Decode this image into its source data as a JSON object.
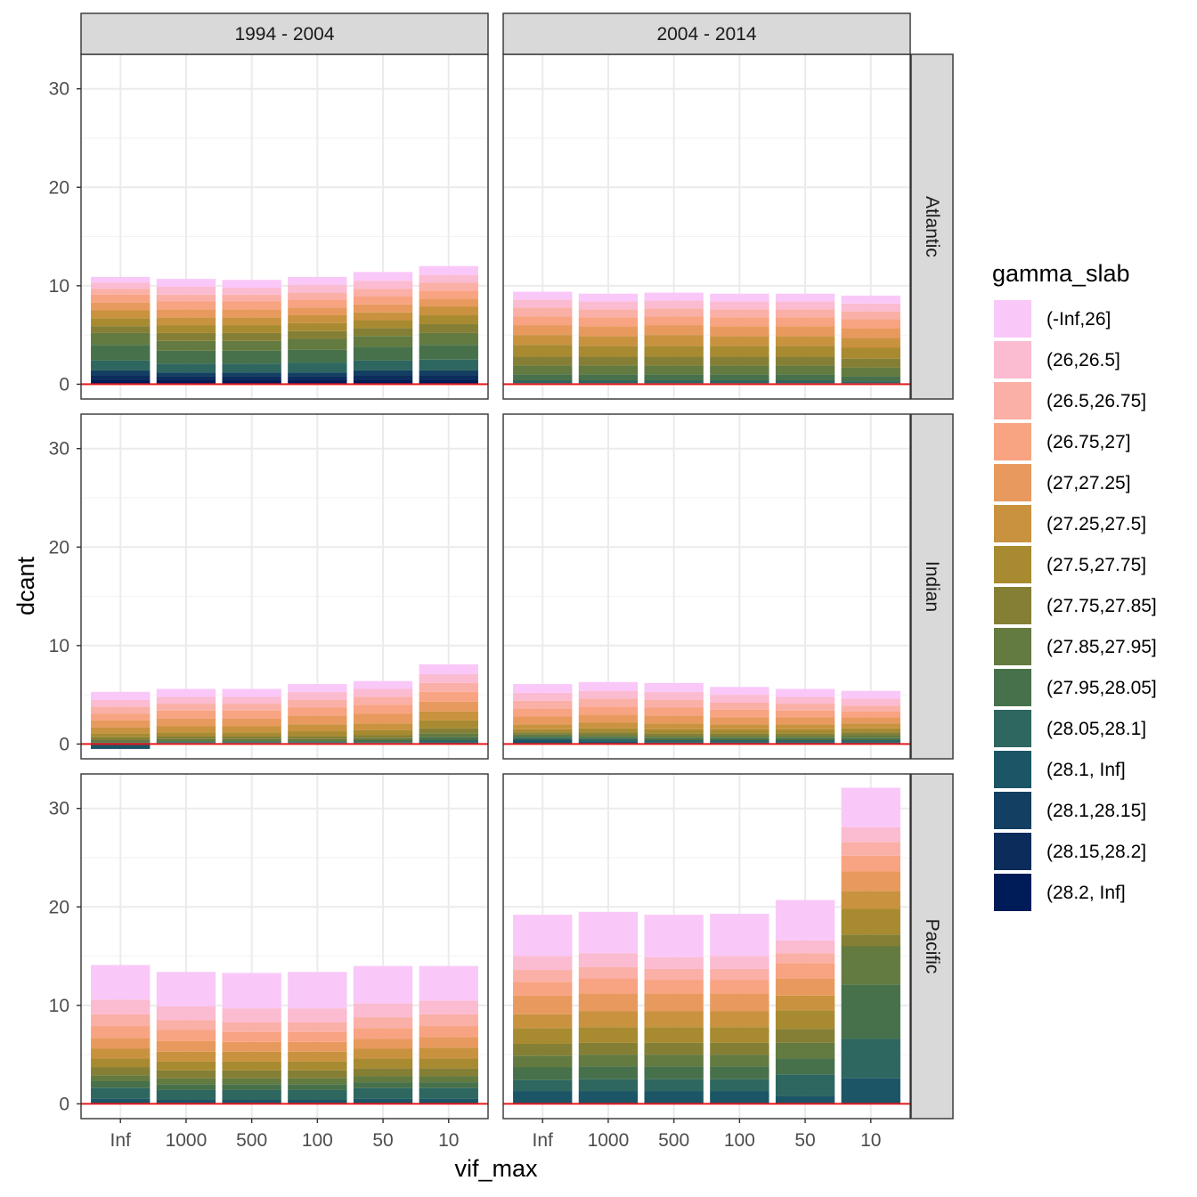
{
  "chart_data": {
    "type": "bar",
    "stacked": true,
    "xlabel": "vif_max",
    "ylabel": "dcant",
    "ylim": [
      -1.5,
      33.5
    ],
    "yticks": [
      0,
      10,
      20,
      30
    ],
    "grid": true,
    "legend_position": "right",
    "legend_title": "gamma_slab",
    "zero_line_color": "#e41a1c",
    "categories": [
      "Inf",
      "1000",
      "500",
      "100",
      "50",
      "10"
    ],
    "facet_cols": [
      "1994 - 2004",
      "2004 - 2014"
    ],
    "facet_rows": [
      "Atlantic",
      "Indian",
      "Pacific"
    ],
    "slabs": [
      "(-Inf,26]",
      "(26,26.5]",
      "(26.5,26.75]",
      "(26.75,27]",
      "(27,27.25]",
      "(27.25,27.5]",
      "(27.5,27.75]",
      "(27.75,27.85]",
      "(27.85,27.95]",
      "(27.95,28.05]",
      "(28.05,28.1]",
      "(28.1, Inf]",
      "(28.1,28.15]",
      "(28.15,28.2]",
      "(28.2, Inf]"
    ],
    "colors": [
      "#f9c8f8",
      "#fbbbd1",
      "#fab0a7",
      "#f8a382",
      "#e89a5e",
      "#c9923f",
      "#a88a31",
      "#857f35",
      "#637a40",
      "#47714b",
      "#2e6660",
      "#1b5566",
      "#133f63",
      "#0c2c5c",
      "#001c58"
    ],
    "panels": [
      {
        "row": "Atlantic",
        "col": "1994 - 2004",
        "bars": [
          [
            0.6,
            0.6,
            0.6,
            0.8,
            0.8,
            0.8,
            0.8,
            0.7,
            1.2,
            1.6,
            1.0,
            0,
            0.5,
            0.5,
            0.4
          ],
          [
            0.8,
            0.8,
            0.7,
            0.8,
            0.8,
            0.8,
            0.8,
            0.8,
            1.0,
            1.3,
            0.9,
            0,
            0.4,
            0.4,
            0.4
          ],
          [
            0.8,
            0.7,
            0.7,
            0.8,
            0.8,
            0.8,
            0.8,
            0.8,
            1.0,
            1.3,
            0.9,
            0,
            0.4,
            0.4,
            0.4
          ],
          [
            0.8,
            0.8,
            0.7,
            0.8,
            0.8,
            0.8,
            0.8,
            0.8,
            1.1,
            1.3,
            1.0,
            0,
            0.4,
            0.4,
            0.4
          ],
          [
            0.9,
            0.8,
            0.8,
            0.8,
            0.8,
            0.8,
            0.8,
            0.8,
            1.1,
            1.4,
            1.0,
            0,
            0.5,
            0.5,
            0.4
          ],
          [
            0.9,
            0.8,
            0.8,
            0.8,
            0.8,
            0.9,
            0.9,
            0.9,
            1.2,
            1.5,
            1.1,
            0,
            0.5,
            0.5,
            0.4
          ]
        ]
      },
      {
        "row": "Atlantic",
        "col": "2004 - 2014",
        "bars": [
          [
            0.8,
            0.8,
            0.9,
            0.9,
            1.0,
            1.0,
            1.2,
            0.9,
            0.9,
            0.6,
            0.3,
            0,
            0.1,
            0,
            0
          ],
          [
            0.8,
            0.8,
            0.8,
            0.9,
            1.0,
            1.0,
            1.1,
            0.9,
            0.9,
            0.6,
            0.3,
            0,
            0.1,
            0,
            0
          ],
          [
            0.8,
            0.8,
            0.8,
            0.9,
            1.0,
            1.1,
            1.1,
            0.9,
            0.9,
            0.6,
            0.3,
            0,
            0.1,
            0,
            0
          ],
          [
            0.8,
            0.8,
            0.8,
            0.9,
            1.0,
            1.0,
            1.1,
            0.9,
            0.9,
            0.6,
            0.3,
            0,
            0.1,
            0,
            0
          ],
          [
            0.8,
            0.8,
            0.8,
            0.9,
            1.0,
            1.0,
            1.1,
            0.9,
            0.9,
            0.6,
            0.3,
            0,
            0.1,
            0,
            0
          ],
          [
            0.8,
            0.8,
            0.8,
            0.9,
            1.0,
            1.0,
            1.1,
            0.9,
            0.9,
            0.5,
            0.2,
            0,
            0.1,
            0,
            0
          ]
        ]
      },
      {
        "row": "Indian",
        "col": "1994 - 2004",
        "bars": [
          [
            0.8,
            0.7,
            0.7,
            0.7,
            0.7,
            0.6,
            0.4,
            0.3,
            0.2,
            0.2,
            0,
            -0.5,
            0,
            0,
            0
          ],
          [
            0.8,
            0.7,
            0.7,
            0.8,
            0.8,
            0.6,
            0.4,
            0.3,
            0.2,
            0.1,
            0.1,
            0.1,
            0,
            0,
            0
          ],
          [
            0.8,
            0.7,
            0.7,
            0.8,
            0.8,
            0.6,
            0.4,
            0.3,
            0.2,
            0.1,
            0.1,
            0.1,
            0,
            0,
            0
          ],
          [
            0.8,
            0.8,
            0.8,
            0.8,
            0.9,
            0.7,
            0.5,
            0.3,
            0.2,
            0.1,
            0.1,
            0.1,
            0,
            0,
            0
          ],
          [
            0.8,
            0.8,
            0.8,
            0.9,
            1.0,
            0.7,
            0.5,
            0.3,
            0.2,
            0.2,
            0.1,
            0.1,
            0,
            0,
            0
          ],
          [
            1.0,
            0.9,
            0.9,
            1.0,
            1.0,
            0.9,
            0.8,
            0.5,
            0.4,
            0.3,
            0.2,
            0.2,
            0,
            0,
            0
          ]
        ]
      },
      {
        "row": "Indian",
        "col": "2004 - 2014",
        "bars": [
          [
            0.9,
            0.8,
            0.8,
            0.8,
            0.8,
            0.5,
            0.3,
            0.2,
            0.2,
            0.2,
            0.2,
            0.4,
            0,
            0,
            0
          ],
          [
            0.9,
            0.8,
            0.8,
            0.8,
            0.8,
            0.6,
            0.4,
            0.3,
            0.2,
            0.2,
            0.2,
            0.3,
            0,
            0,
            0
          ],
          [
            0.9,
            0.8,
            0.8,
            0.8,
            0.8,
            0.6,
            0.4,
            0.3,
            0.2,
            0.2,
            0.2,
            0.2,
            0,
            0,
            0
          ],
          [
            0.8,
            0.8,
            0.7,
            0.8,
            0.7,
            0.5,
            0.4,
            0.3,
            0.2,
            0.2,
            0.2,
            0.2,
            0,
            0,
            0
          ],
          [
            0.8,
            0.7,
            0.7,
            0.7,
            0.7,
            0.5,
            0.4,
            0.3,
            0.2,
            0.2,
            0.2,
            0.2,
            0,
            0,
            0
          ],
          [
            0.8,
            0.7,
            0.6,
            0.6,
            0.6,
            0.5,
            0.4,
            0.3,
            0.3,
            0.2,
            0.2,
            0.2,
            0,
            0,
            0
          ]
        ]
      },
      {
        "row": "Pacific",
        "col": "1994 - 2004",
        "bars": [
          [
            3.5,
            1.5,
            1.2,
            1.2,
            1.1,
            1.0,
            0.9,
            0.8,
            0.6,
            0.7,
            1.1,
            0.5,
            0,
            0,
            0
          ],
          [
            3.5,
            1.4,
            1.0,
            1.1,
            1.1,
            1.0,
            0.9,
            0.8,
            0.6,
            0.6,
            1.0,
            0.4,
            0,
            0,
            0
          ],
          [
            3.6,
            1.4,
            1.0,
            1.0,
            1.0,
            1.0,
            0.9,
            0.8,
            0.6,
            0.6,
            1.0,
            0.4,
            0,
            0,
            0
          ],
          [
            3.7,
            1.4,
            1.0,
            1.0,
            1.0,
            1.0,
            0.9,
            0.8,
            0.6,
            0.6,
            1.0,
            0.4,
            0,
            0,
            0
          ],
          [
            3.8,
            1.4,
            1.1,
            1.1,
            1.0,
            1.0,
            1.0,
            0.8,
            0.6,
            0.6,
            1.1,
            0.5,
            0,
            0,
            0
          ],
          [
            3.5,
            1.4,
            1.2,
            1.1,
            1.1,
            1.1,
            1.0,
            0.8,
            0.6,
            0.6,
            1.1,
            0.5,
            0,
            0,
            0
          ]
        ]
      },
      {
        "row": "Pacific",
        "col": "2004 - 2014",
        "bars": [
          [
            4.2,
            1.4,
            1.2,
            1.4,
            1.9,
            1.4,
            1.6,
            1.2,
            1.2,
            1.3,
            1.1,
            1.3,
            0,
            0,
            0
          ],
          [
            4.2,
            1.4,
            1.2,
            1.5,
            1.8,
            1.6,
            1.6,
            1.2,
            1.2,
            1.3,
            1.2,
            1.3,
            0,
            0,
            0
          ],
          [
            4.3,
            1.2,
            1.1,
            1.4,
            1.8,
            1.6,
            1.6,
            1.2,
            1.2,
            1.3,
            1.2,
            1.3,
            0,
            0,
            0
          ],
          [
            4.3,
            1.3,
            1.1,
            1.4,
            1.8,
            1.6,
            1.6,
            1.2,
            1.2,
            1.3,
            1.2,
            1.3,
            0,
            0,
            0
          ],
          [
            4.1,
            1.3,
            1.0,
            1.6,
            1.7,
            1.5,
            1.9,
            1.4,
            1.6,
            1.6,
            2.2,
            0.8,
            0,
            0,
            0
          ],
          [
            4.0,
            1.5,
            1.4,
            1.6,
            2.0,
            1.8,
            2.6,
            1.2,
            3.9,
            5.5,
            4.0,
            2.6,
            0,
            0,
            0
          ]
        ]
      }
    ]
  }
}
